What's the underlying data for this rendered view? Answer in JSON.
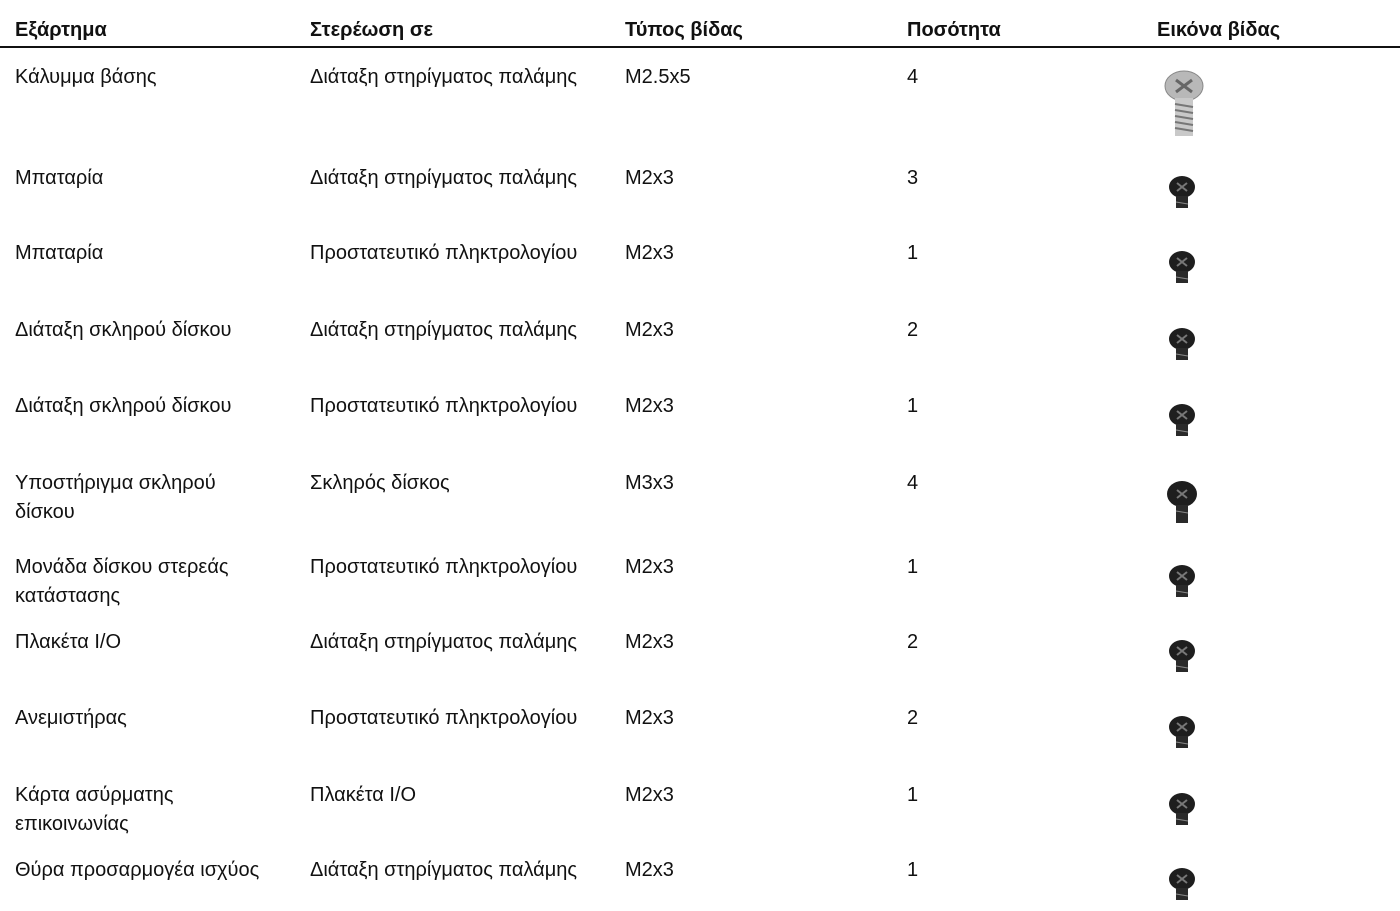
{
  "table": {
    "columns": [
      "Εξάρτημα",
      "Στερέωση σε",
      "Τύπος βίδας",
      "Ποσότητα",
      "Εικόνα βίδας"
    ],
    "rows": [
      [
        "Κάλυμμα βάσης",
        "Διάταξη στηρίγματος παλάμης",
        "M2.5x5",
        4
      ],
      [
        "Μπαταρία",
        "Διάταξη στηρίγματος παλάμης",
        "M2x3",
        3
      ],
      [
        "Μπαταρία",
        "Προστατευτικό πληκτρολογίου",
        "M2x3",
        1
      ],
      [
        "Διάταξη σκληρού δίσκου",
        "Διάταξη στηρίγματος παλάμης",
        "M2x3",
        2
      ],
      [
        "Διάταξη σκληρού δίσκου",
        "Προστατευτικό πληκτρολογίου",
        "M2x3",
        1
      ],
      [
        "Υποστήριγμα σκληρού δίσκου",
        "Σκληρός δίσκος",
        "M3x3",
        4
      ],
      [
        "Μονάδα δίσκου στερεάς κατάστασης",
        "Προστατευτικό πληκτρολογίου",
        "M2x3",
        1
      ],
      [
        "Πλακέτα I/O",
        "Διάταξη στηρίγματος παλάμης",
        "M2x3",
        2
      ],
      [
        "Ανεμιστήρας",
        "Προστατευτικό πληκτρολογίου",
        "M2x3",
        2
      ],
      [
        "Κάρτα ασύρματης επικοινωνίας",
        "Πλακέτα I/O",
        "M2x3",
        1
      ],
      [
        "Θύρα προσαρμογέα ισχύος",
        "Διάταξη στηρίγματος παλάμης",
        "M2x3",
        1
      ]
    ]
  }
}
